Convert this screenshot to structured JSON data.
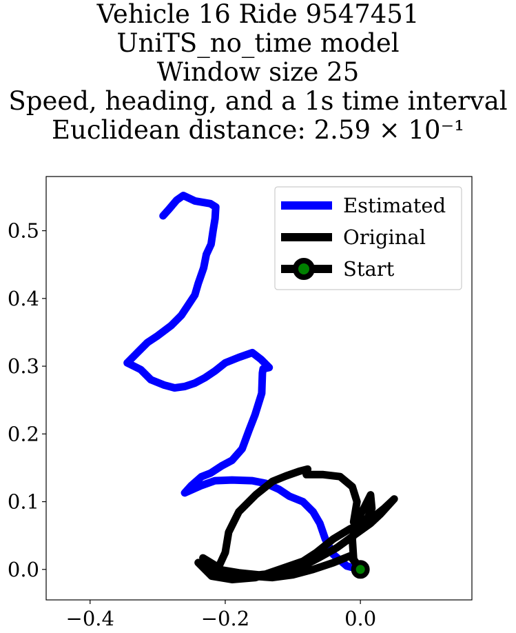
{
  "title_lines": [
    "Vehicle 16 Ride 9547451",
    "UniTS_no_time model",
    "Window size 25",
    "Speed, heading, and a 1s time interval",
    "Euclidean distance: 2.59 × 10⁻¹"
  ],
  "chart_data": {
    "type": "line",
    "title": "Vehicle 16 Ride 9547451 / UniTS_no_time model / Window size 25 / Speed, heading, and a 1s time interval / Euclidean distance: 2.59 × 10^-1",
    "xlabel": "",
    "ylabel": "",
    "xlim": [
      -0.465,
      0.165
    ],
    "ylim": [
      -0.045,
      0.58
    ],
    "xticks": [
      -0.4,
      -0.2,
      0.0
    ],
    "xtick_labels": [
      "−0.4",
      "−0.2",
      "0.0"
    ],
    "yticks": [
      0.0,
      0.1,
      0.2,
      0.3,
      0.4,
      0.5
    ],
    "ytick_labels": [
      "0.0",
      "0.1",
      "0.2",
      "0.3",
      "0.4",
      "0.5"
    ],
    "grid": false,
    "legend_position": "top-right",
    "series": [
      {
        "name": "Estimated",
        "color": "#0000ff",
        "points": [
          [
            0.0,
            0.0
          ],
          [
            -0.02,
            0.005
          ],
          [
            -0.04,
            0.022
          ],
          [
            -0.052,
            0.045
          ],
          [
            -0.06,
            0.068
          ],
          [
            -0.07,
            0.085
          ],
          [
            -0.085,
            0.1
          ],
          [
            -0.105,
            0.108
          ],
          [
            -0.12,
            0.118
          ],
          [
            -0.14,
            0.127
          ],
          [
            -0.16,
            0.131
          ],
          [
            -0.19,
            0.132
          ],
          [
            -0.215,
            0.131
          ],
          [
            -0.235,
            0.124
          ],
          [
            -0.26,
            0.113
          ],
          [
            -0.25,
            0.124
          ],
          [
            -0.235,
            0.137
          ],
          [
            -0.222,
            0.142
          ],
          [
            -0.205,
            0.153
          ],
          [
            -0.19,
            0.161
          ],
          [
            -0.175,
            0.178
          ],
          [
            -0.165,
            0.205
          ],
          [
            -0.156,
            0.228
          ],
          [
            -0.146,
            0.26
          ],
          [
            -0.145,
            0.29
          ],
          [
            -0.144,
            0.296
          ],
          [
            -0.135,
            0.298
          ],
          [
            -0.147,
            0.31
          ],
          [
            -0.16,
            0.32
          ],
          [
            -0.18,
            0.313
          ],
          [
            -0.2,
            0.305
          ],
          [
            -0.215,
            0.293
          ],
          [
            -0.23,
            0.283
          ],
          [
            -0.245,
            0.275
          ],
          [
            -0.26,
            0.27
          ],
          [
            -0.275,
            0.268
          ],
          [
            -0.29,
            0.272
          ],
          [
            -0.31,
            0.28
          ],
          [
            -0.325,
            0.295
          ],
          [
            -0.345,
            0.305
          ],
          [
            -0.33,
            0.32
          ],
          [
            -0.315,
            0.335
          ],
          [
            -0.3,
            0.345
          ],
          [
            -0.28,
            0.36
          ],
          [
            -0.265,
            0.375
          ],
          [
            -0.255,
            0.39
          ],
          [
            -0.245,
            0.405
          ],
          [
            -0.24,
            0.422
          ],
          [
            -0.232,
            0.445
          ],
          [
            -0.228,
            0.465
          ],
          [
            -0.221,
            0.48
          ],
          [
            -0.218,
            0.5
          ],
          [
            -0.215,
            0.518
          ],
          [
            -0.214,
            0.535
          ],
          [
            -0.222,
            0.54
          ],
          [
            -0.245,
            0.544
          ],
          [
            -0.262,
            0.552
          ],
          [
            -0.272,
            0.545
          ],
          [
            -0.283,
            0.532
          ],
          [
            -0.292,
            0.522
          ]
        ]
      },
      {
        "name": "Original",
        "color": "#000000",
        "points": [
          [
            0.0,
            0.0
          ],
          [
            -0.01,
            0.015
          ],
          [
            -0.012,
            0.045
          ],
          [
            -0.005,
            0.072
          ],
          [
            0.005,
            0.09
          ],
          [
            0.015,
            0.11
          ],
          [
            0.017,
            0.09
          ],
          [
            0.01,
            0.075
          ],
          [
            -0.01,
            0.07
          ],
          [
            -0.005,
            0.1
          ],
          [
            -0.012,
            0.122
          ],
          [
            -0.03,
            0.137
          ],
          [
            -0.055,
            0.14
          ],
          [
            -0.08,
            0.14
          ],
          [
            -0.078,
            0.148
          ],
          [
            -0.09,
            0.145
          ],
          [
            -0.11,
            0.138
          ],
          [
            -0.13,
            0.13
          ],
          [
            -0.155,
            0.11
          ],
          [
            -0.18,
            0.085
          ],
          [
            -0.195,
            0.055
          ],
          [
            -0.2,
            0.025
          ],
          [
            -0.21,
            0.003
          ],
          [
            -0.233,
            0.017
          ],
          [
            -0.21,
            0.0
          ],
          [
            -0.18,
            -0.005
          ],
          [
            -0.15,
            -0.008
          ],
          [
            -0.12,
            -0.005
          ],
          [
            -0.085,
            0.005
          ],
          [
            -0.06,
            0.018
          ],
          [
            -0.035,
            0.032
          ],
          [
            -0.01,
            0.05
          ],
          [
            0.015,
            0.068
          ],
          [
            0.03,
            0.082
          ],
          [
            0.05,
            0.104
          ],
          [
            0.035,
            0.09
          ],
          [
            0.01,
            0.07
          ],
          [
            -0.015,
            0.06
          ],
          [
            -0.04,
            0.045
          ],
          [
            -0.065,
            0.025
          ],
          [
            -0.085,
            0.012
          ],
          [
            -0.12,
            0.0
          ],
          [
            -0.155,
            -0.012
          ],
          [
            -0.19,
            -0.015
          ],
          [
            -0.22,
            -0.01
          ],
          [
            -0.24,
            0.01
          ],
          [
            -0.22,
            0.0
          ],
          [
            -0.19,
            -0.008
          ],
          [
            -0.16,
            -0.01
          ],
          [
            -0.13,
            -0.012
          ],
          [
            -0.1,
            -0.008
          ],
          [
            -0.07,
            0.0
          ],
          [
            -0.04,
            0.01
          ],
          [
            -0.015,
            0.02
          ],
          [
            0.0,
            0.0
          ]
        ]
      },
      {
        "name": "Start",
        "marker_face": "#008000",
        "marker_edge": "#000000",
        "points": [
          [
            0.0,
            0.0
          ]
        ]
      }
    ]
  },
  "legend": {
    "items": [
      {
        "label": "Estimated",
        "color": "#0000ff"
      },
      {
        "label": "Original",
        "color": "#000000"
      },
      {
        "label": "Start",
        "color": "#000000",
        "marker_face": "#008000"
      }
    ]
  }
}
